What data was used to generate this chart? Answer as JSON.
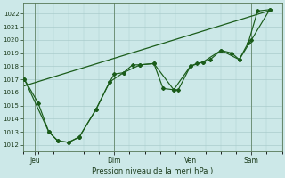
{
  "background_color": "#cce8e8",
  "grid_color": "#aacccc",
  "line_color": "#1a5c1a",
  "marker_color": "#1a5c1a",
  "xlabel": "Pression niveau de la mer( hPa )",
  "ylim": [
    1011.5,
    1022.8
  ],
  "yticks": [
    1012,
    1013,
    1014,
    1015,
    1016,
    1017,
    1018,
    1019,
    1020,
    1021,
    1022
  ],
  "xtick_labels": [
    "Jeu",
    "Dim",
    "Ven",
    "Sam"
  ],
  "xtick_positions": [
    0.4,
    3.0,
    5.5,
    7.5
  ],
  "xlim": [
    0.0,
    8.5
  ],
  "trend_x": [
    0.05,
    8.2
  ],
  "trend_y": [
    1016.5,
    1022.3
  ],
  "line1_x": [
    0.05,
    0.5,
    0.85,
    1.15,
    1.5,
    1.85,
    2.4,
    2.85,
    3.0,
    3.3,
    3.6,
    3.85,
    4.3,
    4.6,
    4.95,
    5.1,
    5.5,
    5.7,
    5.9,
    6.15,
    6.5,
    6.85,
    7.1,
    7.4,
    7.7,
    8.1
  ],
  "line1_y": [
    1017.0,
    1015.2,
    1013.0,
    1012.3,
    1012.2,
    1012.6,
    1014.7,
    1016.8,
    1017.4,
    1017.5,
    1018.1,
    1018.1,
    1018.2,
    1016.3,
    1016.2,
    1016.2,
    1018.0,
    1018.2,
    1018.3,
    1018.5,
    1019.2,
    1019.0,
    1018.5,
    1019.8,
    1022.2,
    1022.3
  ],
  "line2_x": [
    0.05,
    0.85,
    1.15,
    1.5,
    1.85,
    2.4,
    2.85,
    3.3,
    3.85,
    4.3,
    4.95,
    5.5,
    5.9,
    6.5,
    7.1,
    7.5,
    8.1
  ],
  "line2_y": [
    1017.0,
    1013.0,
    1012.3,
    1012.2,
    1012.6,
    1014.7,
    1016.8,
    1017.5,
    1018.1,
    1018.2,
    1016.2,
    1018.0,
    1018.3,
    1019.2,
    1018.5,
    1020.0,
    1022.3
  ]
}
